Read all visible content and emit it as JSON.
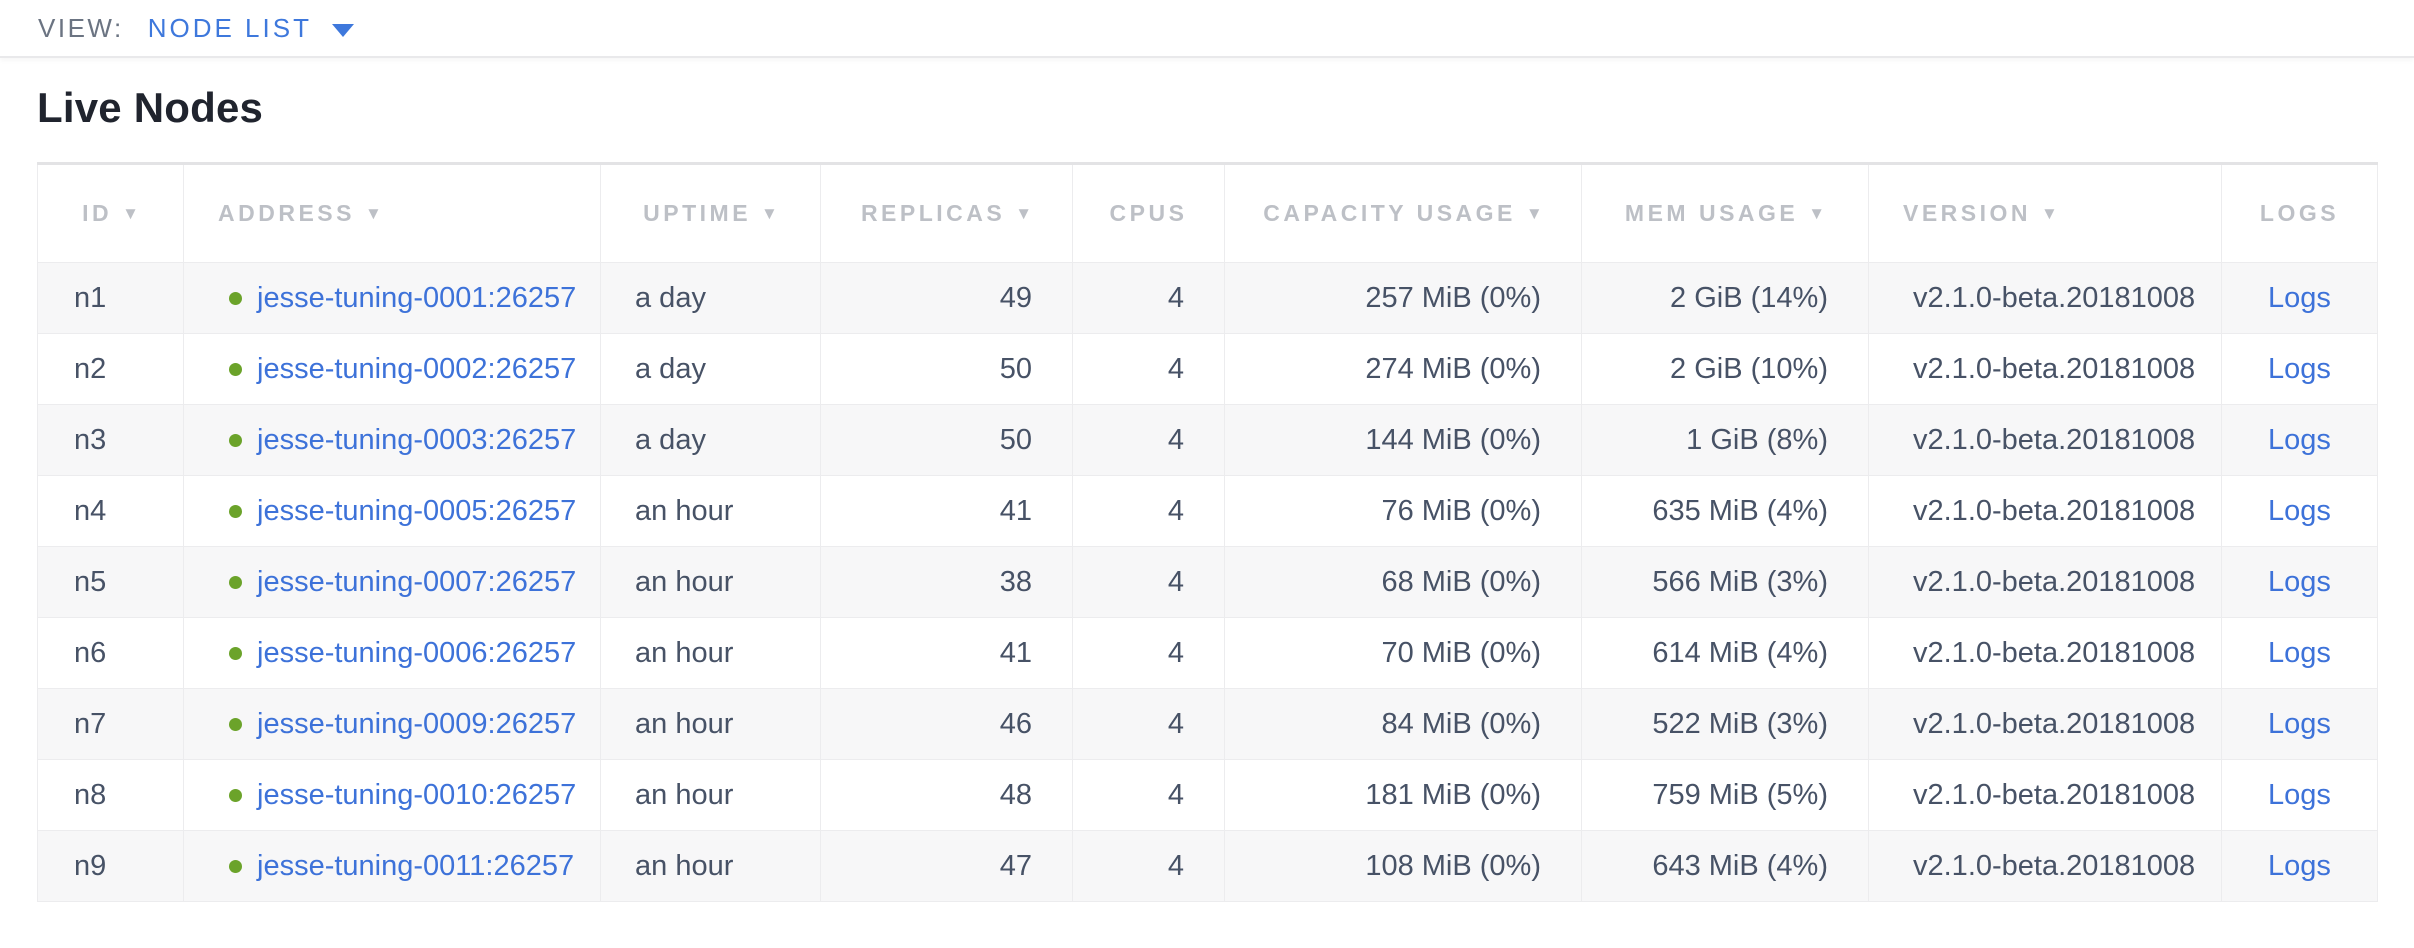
{
  "view_bar": {
    "label": "VIEW:",
    "selected": "NODE LIST"
  },
  "page": {
    "title": "Live Nodes"
  },
  "table": {
    "sort_arrow": "▼",
    "columns": [
      {
        "key": "id",
        "label": "ID",
        "sortable": true,
        "align": "left",
        "header_align": "center"
      },
      {
        "key": "address",
        "label": "ADDRESS",
        "sortable": true,
        "align": "left",
        "header_align": "left"
      },
      {
        "key": "uptime",
        "label": "UPTIME",
        "sortable": true,
        "align": "left",
        "header_align": "center"
      },
      {
        "key": "replicas",
        "label": "REPLICAS",
        "sortable": true,
        "align": "right",
        "header_align": "center"
      },
      {
        "key": "cpus",
        "label": "CPUS",
        "sortable": false,
        "align": "right",
        "header_align": "center"
      },
      {
        "key": "capacity_usage",
        "label": "CAPACITY USAGE",
        "sortable": true,
        "align": "right",
        "header_align": "center"
      },
      {
        "key": "mem_usage",
        "label": "MEM USAGE",
        "sortable": true,
        "align": "right",
        "header_align": "center"
      },
      {
        "key": "version",
        "label": "VERSION",
        "sortable": true,
        "align": "left",
        "header_align": "left"
      },
      {
        "key": "logs",
        "label": "LOGS",
        "sortable": false,
        "align": "center",
        "header_align": "center"
      }
    ],
    "rows": [
      {
        "id": "n1",
        "status": "healthy",
        "address": "jesse-tuning-0001:26257",
        "uptime": "a day",
        "replicas": "49",
        "cpus": "4",
        "capacity_usage": "257 MiB (0%)",
        "mem_usage": "2 GiB (14%)",
        "version": "v2.1.0-beta.20181008",
        "logs": "Logs"
      },
      {
        "id": "n2",
        "status": "healthy",
        "address": "jesse-tuning-0002:26257",
        "uptime": "a day",
        "replicas": "50",
        "cpus": "4",
        "capacity_usage": "274 MiB (0%)",
        "mem_usage": "2 GiB (10%)",
        "version": "v2.1.0-beta.20181008",
        "logs": "Logs"
      },
      {
        "id": "n3",
        "status": "healthy",
        "address": "jesse-tuning-0003:26257",
        "uptime": "a day",
        "replicas": "50",
        "cpus": "4",
        "capacity_usage": "144 MiB (0%)",
        "mem_usage": "1 GiB (8%)",
        "version": "v2.1.0-beta.20181008",
        "logs": "Logs"
      },
      {
        "id": "n4",
        "status": "healthy",
        "address": "jesse-tuning-0005:26257",
        "uptime": "an hour",
        "replicas": "41",
        "cpus": "4",
        "capacity_usage": "76 MiB (0%)",
        "mem_usage": "635 MiB (4%)",
        "version": "v2.1.0-beta.20181008",
        "logs": "Logs"
      },
      {
        "id": "n5",
        "status": "healthy",
        "address": "jesse-tuning-0007:26257",
        "uptime": "an hour",
        "replicas": "38",
        "cpus": "4",
        "capacity_usage": "68 MiB (0%)",
        "mem_usage": "566 MiB (3%)",
        "version": "v2.1.0-beta.20181008",
        "logs": "Logs"
      },
      {
        "id": "n6",
        "status": "healthy",
        "address": "jesse-tuning-0006:26257",
        "uptime": "an hour",
        "replicas": "41",
        "cpus": "4",
        "capacity_usage": "70 MiB (0%)",
        "mem_usage": "614 MiB (4%)",
        "version": "v2.1.0-beta.20181008",
        "logs": "Logs"
      },
      {
        "id": "n7",
        "status": "healthy",
        "address": "jesse-tuning-0009:26257",
        "uptime": "an hour",
        "replicas": "46",
        "cpus": "4",
        "capacity_usage": "84 MiB (0%)",
        "mem_usage": "522 MiB (3%)",
        "version": "v2.1.0-beta.20181008",
        "logs": "Logs"
      },
      {
        "id": "n8",
        "status": "healthy",
        "address": "jesse-tuning-0010:26257",
        "uptime": "an hour",
        "replicas": "48",
        "cpus": "4",
        "capacity_usage": "181 MiB (0%)",
        "mem_usage": "759 MiB (5%)",
        "version": "v2.1.0-beta.20181008",
        "logs": "Logs"
      },
      {
        "id": "n9",
        "status": "healthy",
        "address": "jesse-tuning-0011:26257",
        "uptime": "an hour",
        "replicas": "47",
        "cpus": "4",
        "capacity_usage": "108 MiB (0%)",
        "mem_usage": "643 MiB (4%)",
        "version": "v2.1.0-beta.20181008",
        "logs": "Logs"
      }
    ]
  },
  "colors": {
    "accent_blue": "#3e78dc",
    "link_blue": "#3d72d9",
    "healthy_green": "#6ba32a",
    "header_text": "#bdc0c6",
    "cell_text": "#475266",
    "title_text": "#20242e",
    "view_label_text": "#6b7482",
    "row_stripe": "#f7f7f8",
    "table_border": "#ececee"
  }
}
